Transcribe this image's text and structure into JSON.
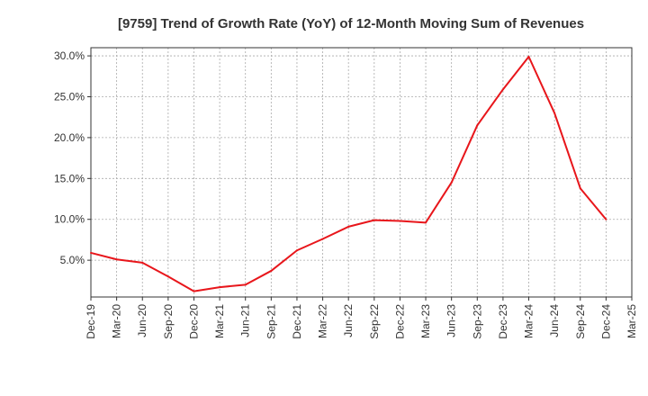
{
  "chart_data": {
    "type": "line",
    "title": "[9759]  Trend of Growth Rate (YoY) of 12-Month Moving Sum of Revenues",
    "xlabel": "",
    "ylabel": "",
    "x_ticks": [
      "Dec-19",
      "Mar-20",
      "Jun-20",
      "Sep-20",
      "Dec-20",
      "Mar-21",
      "Jun-21",
      "Sep-21",
      "Dec-21",
      "Mar-22",
      "Jun-22",
      "Sep-22",
      "Dec-22",
      "Mar-23",
      "Jun-23",
      "Sep-23",
      "Dec-23",
      "Mar-24",
      "Jun-24",
      "Sep-24",
      "Dec-24",
      "Mar-25"
    ],
    "y_ticks": [
      "5.0%",
      "10.0%",
      "15.0%",
      "20.0%",
      "25.0%",
      "30.0%"
    ],
    "y_tick_values": [
      5,
      10,
      15,
      20,
      25,
      30
    ],
    "ylim": [
      0.5,
      31.0
    ],
    "grid": true,
    "line_color": "#e8161b",
    "series": [
      {
        "name": "",
        "x": [
          "Dec-19",
          "Mar-20",
          "Jun-20",
          "Sep-20",
          "Dec-20",
          "Mar-21",
          "Jun-21",
          "Sep-21",
          "Dec-21",
          "Mar-22",
          "Jun-22",
          "Sep-22",
          "Dec-22",
          "Mar-23",
          "Jun-23",
          "Sep-23",
          "Dec-23",
          "Mar-24",
          "Jun-24",
          "Sep-24",
          "Dec-24"
        ],
        "values": [
          5.9,
          5.1,
          4.7,
          3.0,
          1.2,
          1.7,
          2.0,
          3.7,
          6.2,
          7.6,
          9.1,
          9.9,
          9.8,
          9.6,
          14.5,
          21.5,
          25.9,
          29.9,
          23.0,
          13.8,
          10.0
        ]
      }
    ]
  }
}
